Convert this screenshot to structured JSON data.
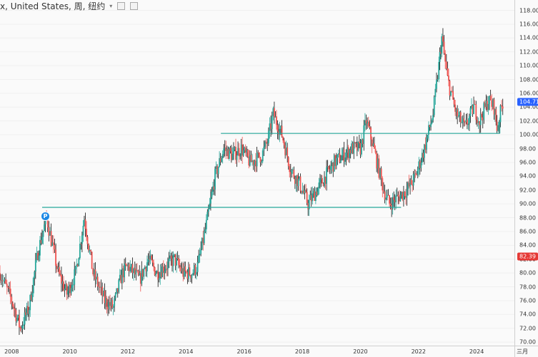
{
  "header": {
    "title": "x, United States, 周, 纽约",
    "caret": "▾"
  },
  "price_axis": {
    "ticks": [
      "118.00",
      "116.00",
      "114.00",
      "112.00",
      "110.00",
      "108.00",
      "106.00",
      "104.00",
      "102.00",
      "100.00",
      "98.00",
      "96.00",
      "94.00",
      "92.00",
      "90.00",
      "88.00",
      "86.00",
      "84.00",
      "82.00",
      "80.00",
      "78.00",
      "76.00",
      "74.00",
      "72.00",
      "70.00"
    ],
    "current_label": "104.71",
    "current_color": "#2962ff",
    "secondary_label": "82.39",
    "secondary_color": "#e53935"
  },
  "time_axis": {
    "ticks": [
      "2008",
      "2010",
      "2012",
      "2014",
      "2016",
      "2018",
      "2020",
      "2022",
      "2024"
    ],
    "corner_label": "三月"
  },
  "marker": {
    "letter": "P",
    "color": "#1e88e5"
  },
  "levels": {
    "color": "#26a69a",
    "upper": 100.2,
    "lower": 89.5
  },
  "chart_data": {
    "type": "candlestick",
    "title": "",
    "xlabel": "",
    "ylabel": "",
    "ylim": [
      69.5,
      119.5
    ],
    "x": [
      "2007.6",
      "2008.0",
      "2008.3",
      "2008.6",
      "2008.9",
      "2009.2",
      "2009.6",
      "2009.9",
      "2010.2",
      "2010.5",
      "2010.8",
      "2011.2",
      "2011.5",
      "2011.8",
      "2012.0",
      "2012.4",
      "2012.7",
      "2013.0",
      "2013.3",
      "2013.6",
      "2013.9",
      "2014.2",
      "2014.4",
      "2014.7",
      "2015.0",
      "2015.3",
      "2015.6",
      "2015.9",
      "2016.2",
      "2016.6",
      "2016.8",
      "2017.0",
      "2017.3",
      "2017.6",
      "2017.9",
      "2018.2",
      "2018.5",
      "2018.8",
      "2019.1",
      "2019.4",
      "2019.7",
      "2020.0",
      "2020.2",
      "2020.4",
      "2020.8",
      "2021.0",
      "2021.3",
      "2021.6",
      "2021.9",
      "2022.2",
      "2022.5",
      "2022.7",
      "2022.8",
      "2023.0",
      "2023.3",
      "2023.6",
      "2023.9",
      "2024.1",
      "2024.4",
      "2024.6",
      "2024.7",
      "2024.9"
    ],
    "series": [
      {
        "values": [
          80,
          76,
          72,
          75,
          83,
          88,
          80,
          77,
          80,
          88,
          80,
          76,
          75,
          80,
          81,
          79,
          82,
          80,
          81,
          82,
          80,
          80,
          81,
          87,
          94,
          98,
          97,
          98,
          96,
          97,
          99,
          103,
          100,
          95,
          93,
          90,
          92,
          94,
          96,
          97,
          98,
          98,
          102,
          99,
          92,
          90,
          91,
          92,
          94,
          98,
          103,
          110,
          114,
          108,
          103,
          101,
          104,
          102,
          105,
          104,
          101,
          104.71
        ]
      }
    ]
  }
}
